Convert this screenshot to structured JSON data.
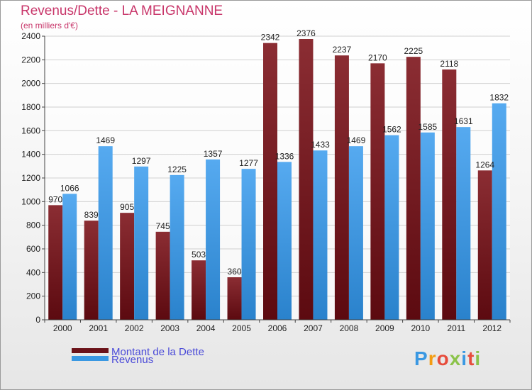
{
  "chart_data": {
    "type": "bar",
    "title": "Revenus/Dette - LA MEIGNANNE",
    "subtitle": "(en milliers d'€)",
    "categories": [
      "2000",
      "2001",
      "2002",
      "2003",
      "2004",
      "2005",
      "2006",
      "2007",
      "2008",
      "2009",
      "2010",
      "2011",
      "2012"
    ],
    "series": [
      {
        "name": "Montant de la Dette",
        "color": "#7a1c24",
        "values": [
          970,
          839,
          905,
          745,
          503,
          360,
          2342,
          2376,
          2237,
          2170,
          2225,
          2118,
          1264
        ]
      },
      {
        "name": "Revenus",
        "color": "#3a98e2",
        "values": [
          1066,
          1469,
          1297,
          1225,
          1357,
          1277,
          1336,
          1433,
          1469,
          1562,
          1585,
          1631,
          1832
        ]
      }
    ],
    "ylim": [
      0,
      2400
    ],
    "yticks": [
      0,
      200,
      400,
      600,
      800,
      1000,
      1200,
      1400,
      1600,
      1800,
      2000,
      2200,
      2400
    ],
    "grid": true,
    "legend": "bottom-left"
  },
  "logo": {
    "text": "Proxiti",
    "colors": [
      "#3a98e2",
      "#f39c12",
      "#e74c3c",
      "#8bc34a",
      "#3a98e2",
      "#e74c3c",
      "#8bc34a"
    ]
  }
}
